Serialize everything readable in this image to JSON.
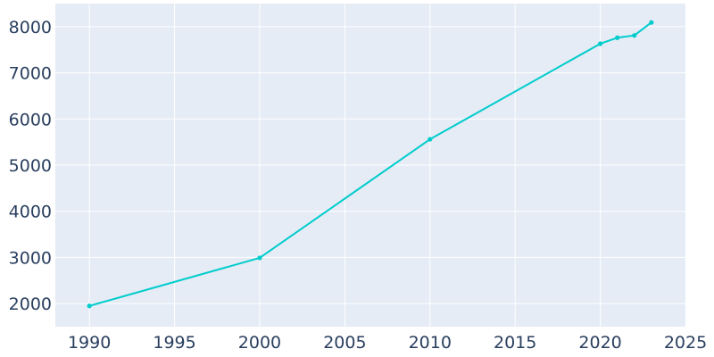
{
  "chart_data": {
    "type": "line",
    "title": "",
    "xlabel": "",
    "ylabel": "",
    "xlim": [
      1988,
      2025
    ],
    "ylim": [
      1500,
      8500
    ],
    "x_ticks": [
      1990,
      1995,
      2000,
      2005,
      2010,
      2015,
      2020,
      2025
    ],
    "y_ticks": [
      2000,
      3000,
      4000,
      5000,
      6000,
      7000,
      8000
    ],
    "grid": true,
    "series": [
      {
        "x": [
          1990,
          2000,
          2010,
          2020,
          2021,
          2022,
          2023
        ],
        "y": [
          1950,
          2990,
          5560,
          7630,
          7760,
          7810,
          8090
        ]
      }
    ],
    "colors": {
      "line": "#00cccc",
      "plot_background": "#e5ecf6",
      "grid": "#ffffff",
      "tick_text": "#2a3f5f"
    }
  }
}
